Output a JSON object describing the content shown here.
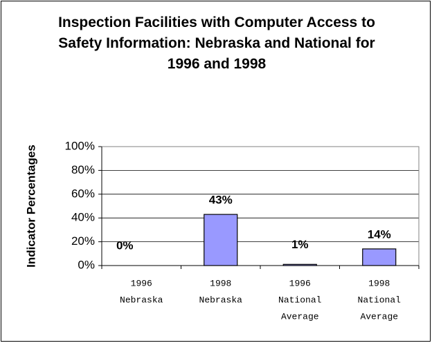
{
  "chart_data": {
    "type": "bar",
    "title": "Inspection Facilities with Computer Access to Safety Information: Nebraska and National for 1996 and 1998",
    "y_label": "Indicator Percentages",
    "categories": [
      [
        "1996",
        "Nebraska"
      ],
      [
        "1998",
        "Nebraska"
      ],
      [
        "1996",
        "National",
        "Average"
      ],
      [
        "1998",
        "National",
        "Average"
      ]
    ],
    "values": [
      0,
      43,
      1,
      14
    ],
    "value_labels": [
      "0%",
      "43%",
      "1%",
      "14%"
    ],
    "color": "#9999ff",
    "ylim": [
      0,
      100
    ],
    "yticks": [
      {
        "value": 0,
        "label": "0%"
      },
      {
        "value": 20,
        "label": "20%"
      },
      {
        "value": 40,
        "label": "40%"
      },
      {
        "value": 60,
        "label": "60%"
      },
      {
        "value": 80,
        "label": "80%"
      },
      {
        "value": 100,
        "label": "100%"
      }
    ],
    "grid": true
  }
}
